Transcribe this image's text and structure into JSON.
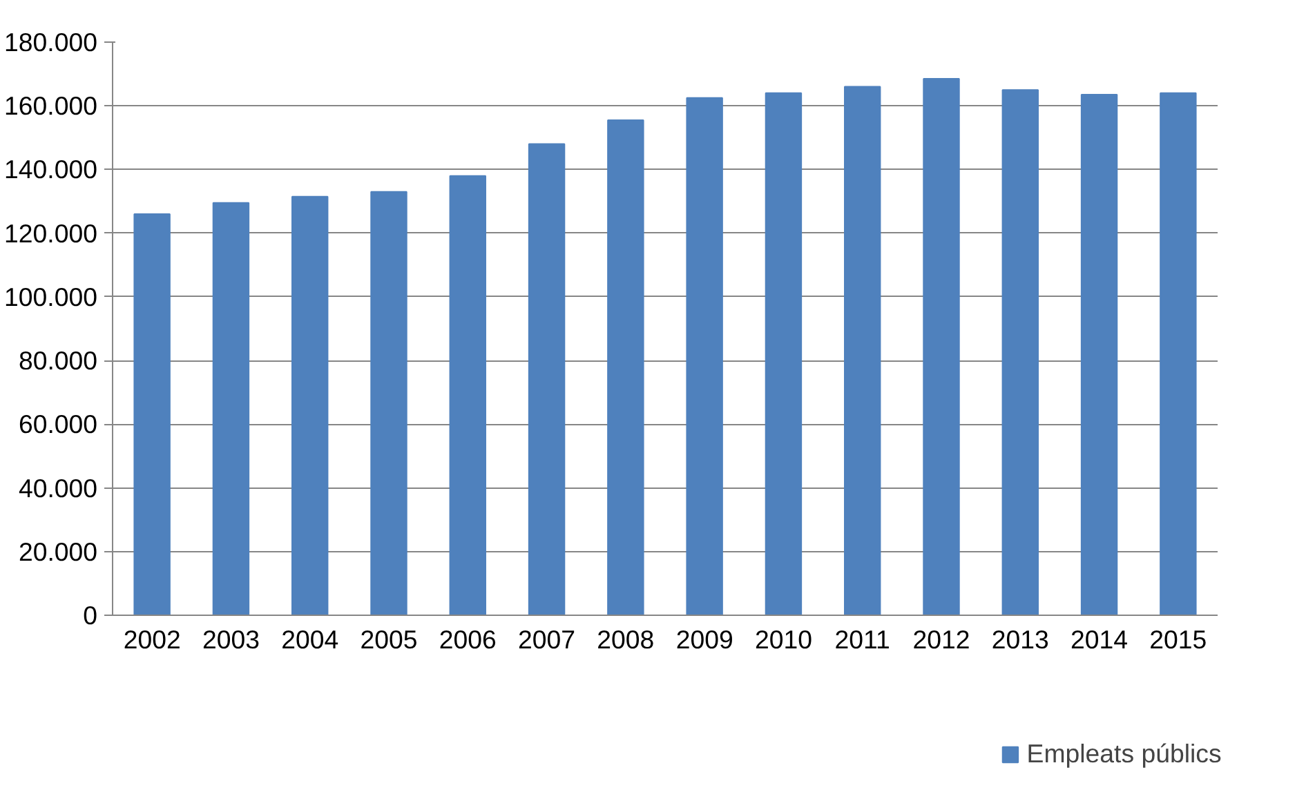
{
  "chart_data": {
    "type": "bar",
    "categories": [
      "2002",
      "2003",
      "2004",
      "2005",
      "2006",
      "2007",
      "2008",
      "2009",
      "2010",
      "2011",
      "2012",
      "2013",
      "2014",
      "2015"
    ],
    "series": [
      {
        "name": "Empleats públics",
        "color": "#4f81bd",
        "values": [
          126000,
          129500,
          131500,
          133000,
          138000,
          148000,
          155500,
          162500,
          164000,
          166000,
          168500,
          165000,
          163500,
          164000
        ]
      }
    ],
    "ylim": [
      0,
      180000
    ],
    "yticks": [
      {
        "value": 0,
        "label": "0"
      },
      {
        "value": 20000,
        "label": "20.000"
      },
      {
        "value": 40000,
        "label": "40.000"
      },
      {
        "value": 60000,
        "label": "60.000"
      },
      {
        "value": 80000,
        "label": "80.000"
      },
      {
        "value": 100000,
        "label": "100.000"
      },
      {
        "value": 120000,
        "label": "120.000"
      },
      {
        "value": 140000,
        "label": "140.000"
      },
      {
        "value": 160000,
        "label": "160.000"
      },
      {
        "value": 180000,
        "label": "180.000"
      }
    ],
    "grid": "y",
    "legend": "bottom"
  }
}
